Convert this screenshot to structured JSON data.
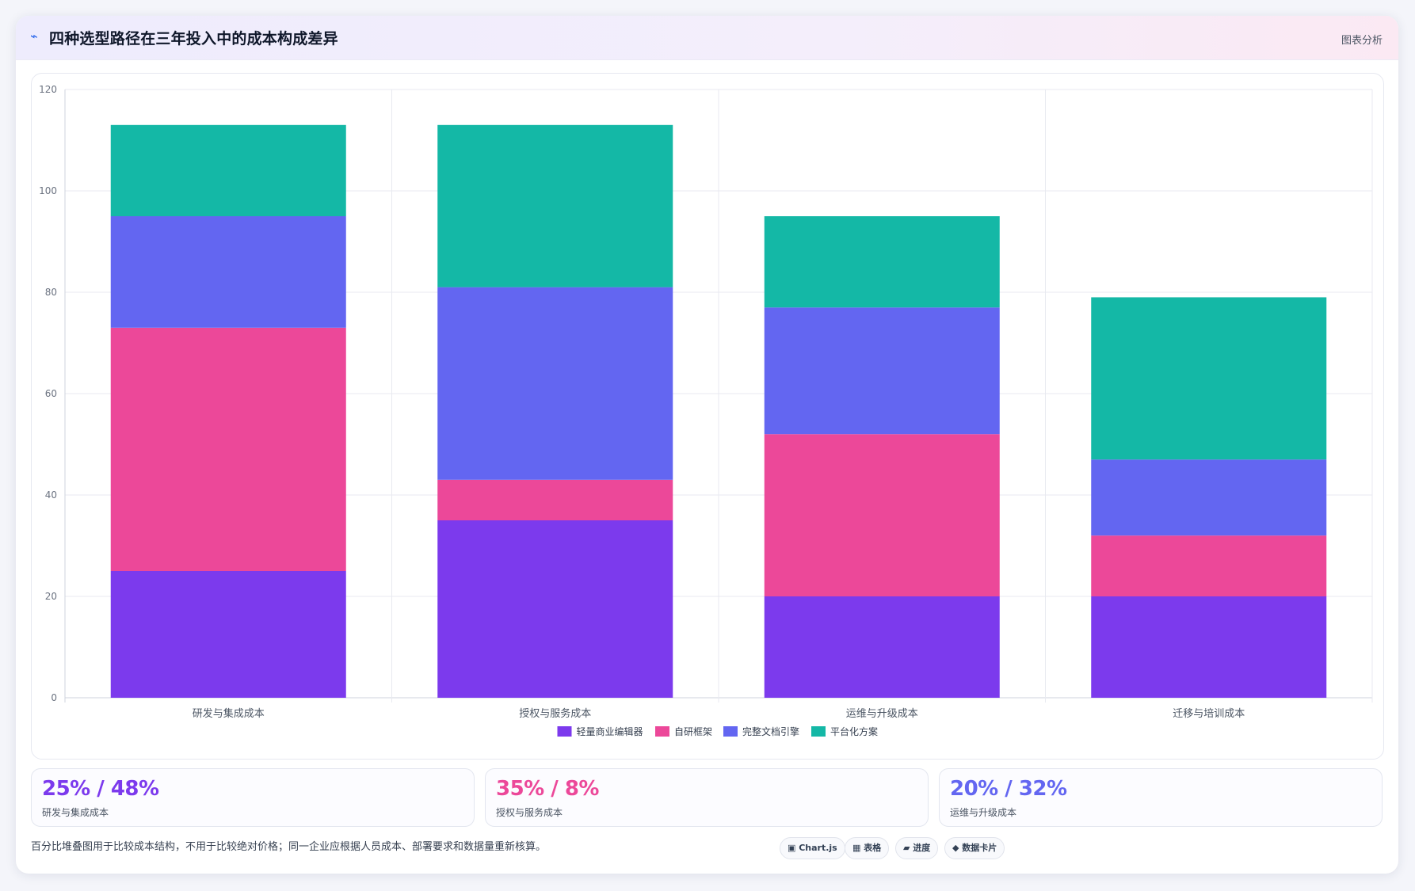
{
  "header": {
    "icon": "⌁",
    "title": "四种选型路径在三年投入中的成本构成差异",
    "tag": "图表分析"
  },
  "chart_data": {
    "type": "bar",
    "stacked": true,
    "categories": [
      "研发与集成成本",
      "授权与服务成本",
      "运维与升级成本",
      "迁移与培训成本"
    ],
    "series": [
      {
        "name": "轻量商业编辑器",
        "color": "#7c3aed",
        "values": [
          25,
          35,
          20,
          20
        ]
      },
      {
        "name": "自研框架",
        "color": "#ec4899",
        "values": [
          48,
          8,
          32,
          12
        ]
      },
      {
        "name": "完整文档引擎",
        "color": "#6366f1",
        "values": [
          22,
          38,
          25,
          15
        ]
      },
      {
        "name": "平台化方案",
        "color": "#14b8a6",
        "values": [
          18,
          32,
          18,
          32
        ]
      }
    ],
    "ylim": [
      0,
      120
    ],
    "yticks": [
      0,
      20,
      40,
      60,
      80,
      100,
      120
    ],
    "grid": true,
    "legend": "bottom"
  },
  "stats": [
    {
      "value": "25% / 48%",
      "label": "研发与集成成本",
      "color": "#7c3aed"
    },
    {
      "value": "35% / 8%",
      "label": "授权与服务成本",
      "color": "#ec4899"
    },
    {
      "value": "20% / 32%",
      "label": "运维与升级成本",
      "color": "#6366f1"
    }
  ],
  "note": "百分比堆叠图用于比较成本结构，不用于比较绝对价格；同一企业应根据人员成本、部署要求和数据量重新核算。",
  "chips": [
    "▣ Chart.js",
    "▦ 表格",
    "▰ 进度",
    "◆ 数据卡片"
  ]
}
